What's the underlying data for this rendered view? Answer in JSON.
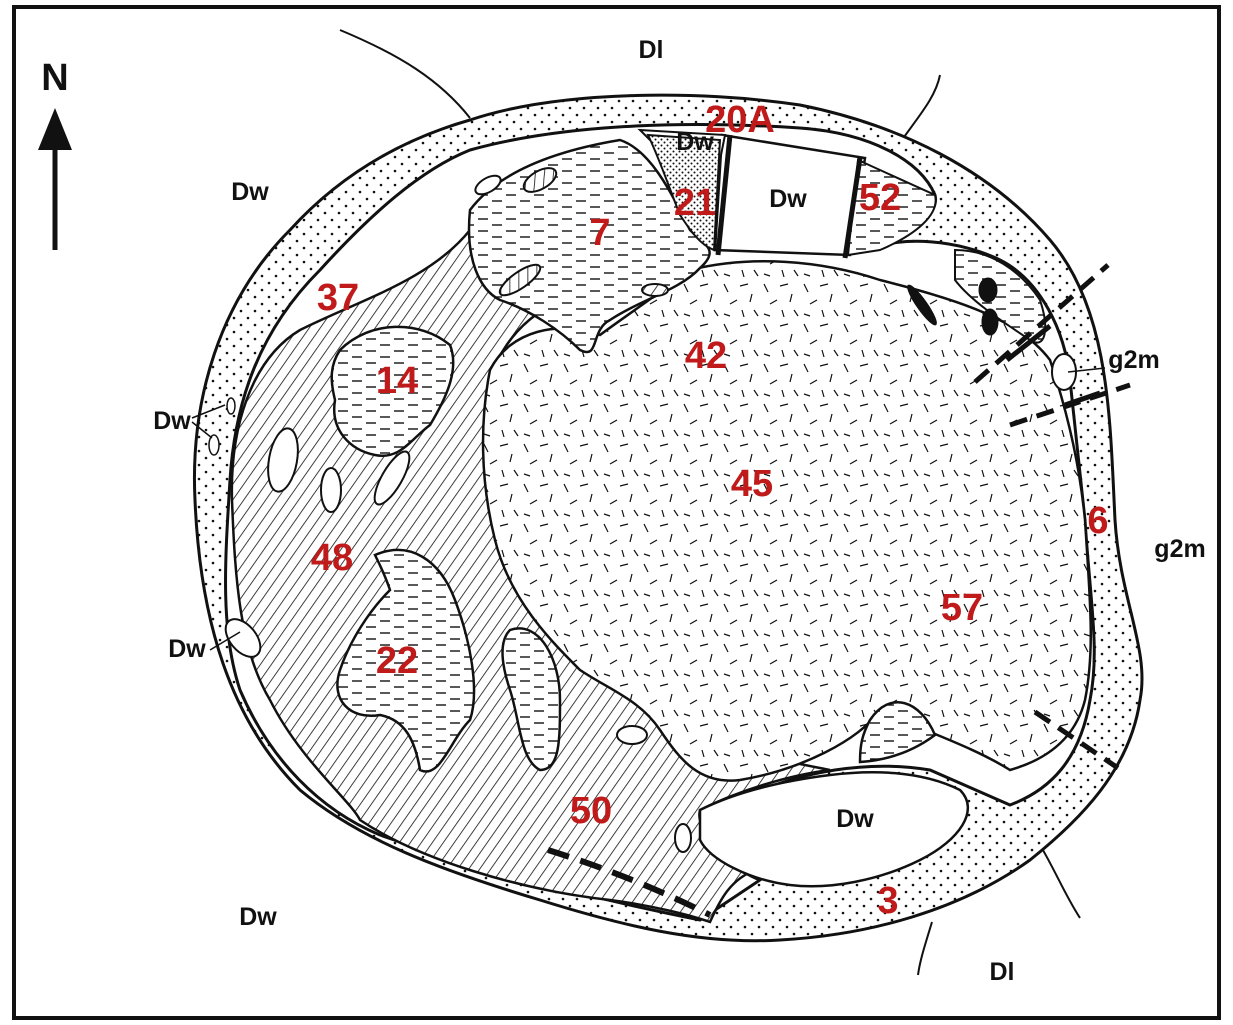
{
  "map": {
    "north_arrow_label": "N",
    "colors": {
      "red_labels": "#c01a1a",
      "outline": "#111111",
      "paper": "#ffffff"
    },
    "unit_labels": {
      "dl_top": "Dl",
      "dl_bottom": "Dl",
      "dw_nw": "Dw",
      "dw_north_small": "Dw",
      "dw_north_center": "Dw",
      "dw_west_upper": "Dw",
      "dw_west_lower": "Dw",
      "dw_sw": "Dw",
      "dw_south_inner": "Dw",
      "g2m_east_upper": "g2m",
      "g2m_east": "g2m"
    },
    "site_numbers": {
      "s20A": "20A",
      "s21": "21",
      "s52": "52",
      "s7": "7",
      "s37": "37",
      "s42": "42",
      "s14": "14",
      "s45": "45",
      "s6": "6",
      "s48": "48",
      "s57": "57",
      "s22": "22",
      "s50": "50",
      "s3": "3"
    }
  }
}
